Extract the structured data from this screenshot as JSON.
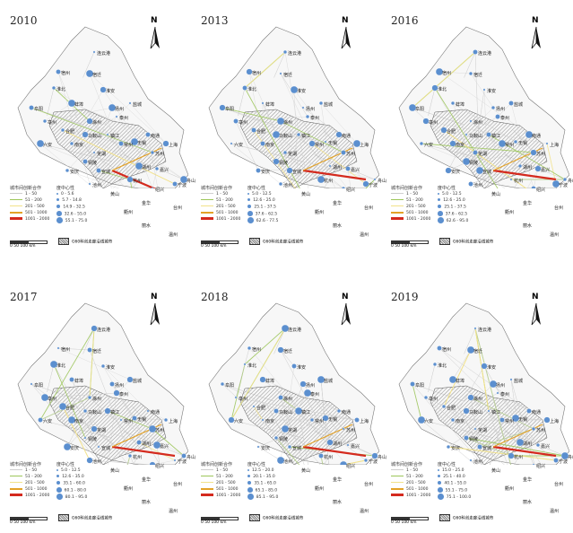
{
  "panels": [
    {
      "year": "2010",
      "legend_title_edge": "城市间创新合作",
      "legend_title_node": "度中心性",
      "edge_classes": [
        "1 - 50",
        "51 - 200",
        "201 - 500",
        "501 - 1000",
        "1001 - 2000"
      ],
      "node_classes": [
        "0 - 5.6",
        "5.7 - 14.8",
        "14.9 - 32.5",
        "32.6 - 55.0",
        "55.1 - 75.0"
      ],
      "scale_text": "0      50       100 km",
      "hatch_text": "G60科创走廊沿线城市"
    },
    {
      "year": "2013",
      "legend_title_edge": "城市间创新合作",
      "legend_title_node": "度中心性",
      "edge_classes": [
        "1 - 50",
        "51 - 200",
        "201 - 500",
        "501 - 1000",
        "1001 - 2000"
      ],
      "node_classes": [
        "5.0 - 12.5",
        "12.6 - 25.0",
        "25.1 - 37.5",
        "37.6 - 62.5",
        "62.6 - 77.5"
      ],
      "scale_text": "0      50       100 km",
      "hatch_text": "G60科创走廊沿线城市"
    },
    {
      "year": "2016",
      "legend_title_edge": "城市间创新合作",
      "legend_title_node": "度中心性",
      "edge_classes": [
        "1 - 50",
        "51 - 200",
        "201 - 500",
        "501 - 1000",
        "1001 - 2000"
      ],
      "node_classes": [
        "5.0 - 12.5",
        "12.6 - 25.0",
        "25.1 - 37.5",
        "37.6 - 62.5",
        "62.6 - 95.0"
      ],
      "scale_text": "0      50       100 km",
      "hatch_text": "G60科创走廊沿线城市"
    },
    {
      "year": "2017",
      "legend_title_edge": "城市间创新合作",
      "legend_title_node": "度中心性",
      "edge_classes": [
        "1 - 50",
        "51 - 200",
        "201 - 500",
        "501 - 1000",
        "1001 - 2000"
      ],
      "node_classes": [
        "5.0 - 12.5",
        "12.6 - 35.0",
        "35.1 - 60.0",
        "60.1 - 80.0",
        "80.1 - 95.0"
      ],
      "scale_text": "0      50       100 km",
      "hatch_text": "G60科创走廊沿线城市"
    },
    {
      "year": "2018",
      "legend_title_edge": "城市间创新合作",
      "legend_title_node": "度中心性",
      "edge_classes": [
        "1 - 50",
        "51 - 200",
        "201 - 500",
        "501 - 1000",
        "1001 - 2000"
      ],
      "node_classes": [
        "12.5 - 20.0",
        "20.1 - 35.0",
        "35.1 - 65.0",
        "65.1 - 85.0",
        "85.1 - 95.0"
      ],
      "scale_text": "0      50       100 km",
      "hatch_text": "G60科创走廊沿线城市"
    },
    {
      "year": "2019",
      "legend_title_edge": "城市间创新合作",
      "legend_title_node": "度中心性",
      "edge_classes": [
        "1 - 50",
        "51 - 200",
        "201 - 500",
        "501 - 1000",
        "1001 - 2000"
      ],
      "node_classes": [
        "15.0 - 25.0",
        "25.1 - 40.0",
        "40.1 - 55.0",
        "55.1 - 75.0",
        "75.1 - 100.0"
      ],
      "scale_text": "0      50       100 km",
      "hatch_text": "G60科创走廊沿线城市"
    }
  ],
  "north_letter": "N",
  "edge_colors": [
    "#cfcfcf",
    "#9dc75a",
    "#f2e28a",
    "#e3a227",
    "#d42a1e"
  ],
  "node_color": "#5b8fcf",
  "cities": [
    "连云港",
    "宿州",
    "宿迁",
    "淮北",
    "淮安",
    "盐城",
    "阜阳",
    "蚌埠",
    "亳州",
    "滁州",
    "泰州",
    "南通",
    "六安",
    "合肥",
    "马鞍山",
    "镇江",
    "常州",
    "无锡",
    "苏州",
    "上海",
    "芜湖",
    "宣城",
    "湖州",
    "嘉兴",
    "杭州",
    "绍兴",
    "宁波",
    "舟山",
    "安庆",
    "黄山",
    "衢州",
    "金华",
    "台州",
    "丽水",
    "温州",
    "池州",
    "铜陵",
    "扬州",
    "南京"
  ]
}
